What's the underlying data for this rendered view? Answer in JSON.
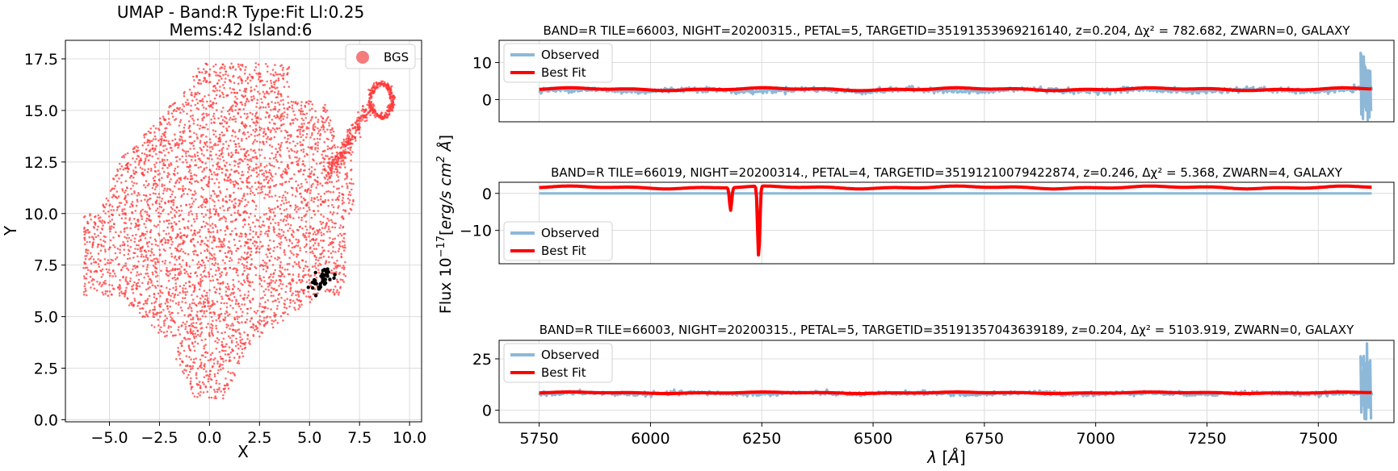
{
  "figure": {
    "ylabel_shared": "Flux 10^{-17}[erg/s cm^2 Å]"
  },
  "chart_data": [
    {
      "type": "scatter",
      "title_line1": "UMAP  -  Band:R Type:Fit Ll:0.25",
      "title_line2": "Mems:42 Island:6",
      "xlabel": "X",
      "ylabel": "Y",
      "xlim": [
        -7.2,
        10.6
      ],
      "ylim": [
        -0.1,
        18.4
      ],
      "xticks": [
        -5.0,
        -2.5,
        0.0,
        2.5,
        5.0,
        7.5,
        10.0
      ],
      "xtick_labels": [
        "−5.0",
        "−2.5",
        "0.0",
        "2.5",
        "5.0",
        "7.5",
        "10.0"
      ],
      "yticks": [
        0.0,
        2.5,
        5.0,
        7.5,
        10.0,
        12.5,
        15.0,
        17.5
      ],
      "ytick_labels": [
        "0.0",
        "2.5",
        "5.0",
        "7.5",
        "10.0",
        "12.5",
        "15.0",
        "17.5"
      ],
      "grid": true,
      "legend": {
        "label": "BGS",
        "placement": "top-right"
      },
      "colors": {
        "points": "#ff3b3b",
        "highlight": "#000000",
        "legend_marker": "#f47c7c"
      },
      "series": [
        {
          "name": "BGS",
          "color": "#ff3b3b",
          "description": "dense cloud of ~5000 points spanning x -6.3..9, y 1..17.3, with a tail curling into a loop near (8.5, 15.5)"
        },
        {
          "name": "",
          "color": "#000000",
          "cluster_center": [
            5.7,
            6.9
          ],
          "count": 42
        }
      ]
    },
    {
      "type": "line",
      "title": "BAND=R TILE=66003, NIGHT=20200315., PETAL=5, TARGETID=35191353969216140, z=0.204, Δχ² = 782.682, ZWARN=0, GALAXY",
      "xlim": [
        5660,
        7670
      ],
      "ylim": [
        -6,
        16
      ],
      "yticks": [
        0,
        10
      ],
      "ytick_labels": [
        "0",
        "10"
      ],
      "grid": true,
      "legend": [
        "Observed",
        "Best Fit"
      ],
      "series": [
        {
          "name": "Observed",
          "color": "#8db8d8",
          "baseline": 2.5,
          "noise": 0.7,
          "x_range": [
            5750,
            7620
          ],
          "end_spike": [
            15,
            -6
          ]
        },
        {
          "name": "Best Fit",
          "color": "#ff0000",
          "baseline": 2.8,
          "x_range": [
            5750,
            7620
          ]
        }
      ]
    },
    {
      "type": "line",
      "title": "BAND=R TILE=66019, NIGHT=20200314., PETAL=4, TARGETID=35191210079422874, z=0.246, Δχ² = 5.368, ZWARN=4, GALAXY",
      "xlim": [
        5660,
        7670
      ],
      "ylim": [
        -19,
        3
      ],
      "yticks": [
        0,
        -10
      ],
      "ytick_labels": [
        "0",
        "−10"
      ],
      "grid": true,
      "legend": [
        "Observed",
        "Best Fit"
      ],
      "series": [
        {
          "name": "Observed",
          "color": "#8db8d8",
          "baseline": 0.0,
          "x_range": [
            5750,
            7620
          ]
        },
        {
          "name": "Best Fit",
          "color": "#ff0000",
          "baseline": 1.6,
          "x_range": [
            5750,
            7620
          ],
          "absorption_lines": [
            [
              6180,
              -4.5
            ],
            [
              6243,
              -17.5
            ]
          ]
        }
      ]
    },
    {
      "type": "line",
      "title": "BAND=R TILE=66003, NIGHT=20200315., PETAL=5, TARGETID=35191357043639189, z=0.204, Δχ² = 5103.919, ZWARN=0, GALAXY",
      "xlabel": "λ [Å]",
      "xlim": [
        5660,
        7670
      ],
      "ylim": [
        -6,
        34
      ],
      "xticks": [
        5750,
        6000,
        6250,
        6500,
        6750,
        7000,
        7250,
        7500
      ],
      "xtick_labels": [
        "5750",
        "6000",
        "6250",
        "6500",
        "6750",
        "7000",
        "7250",
        "7500"
      ],
      "yticks": [
        0,
        25
      ],
      "ytick_labels": [
        "0",
        "25"
      ],
      "grid": true,
      "legend": [
        "Observed",
        "Best Fit"
      ],
      "series": [
        {
          "name": "Observed",
          "color": "#8db8d8",
          "baseline": 8.2,
          "noise": 1.0,
          "x_range": [
            5750,
            7620
          ],
          "end_spike": [
            33,
            -5
          ]
        },
        {
          "name": "Best Fit",
          "color": "#ff0000",
          "baseline": 8.5,
          "x_range": [
            5750,
            7620
          ]
        }
      ]
    }
  ]
}
